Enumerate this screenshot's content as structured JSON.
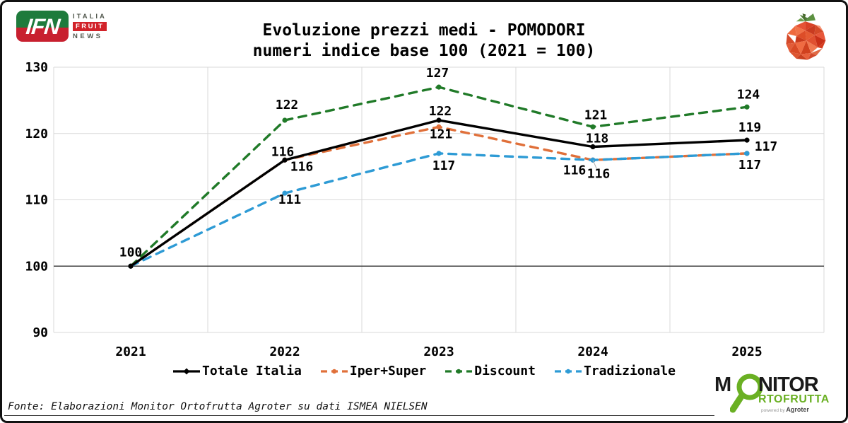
{
  "header": {
    "logo": {
      "ifn": "IFN",
      "italia": "ITALIA",
      "fruit": "FRUIT",
      "news": "NEWS"
    },
    "title_line1": "Evoluzione prezzi medi - POMODORI",
    "title_line2": "numeri indice base 100 (2021 = 100)"
  },
  "chart_data": {
    "type": "line",
    "title": "Evoluzione prezzi medi - POMODORI",
    "subtitle": "numeri indice base 100 (2021 = 100)",
    "categories": [
      "2021",
      "2022",
      "2023",
      "2024",
      "2025"
    ],
    "series": [
      {
        "name": "Totale Italia",
        "values": [
          100,
          116,
          122,
          118,
          119
        ],
        "color": "#000000",
        "dash": "solid"
      },
      {
        "name": "Iper+Super",
        "values": [
          100,
          116,
          121,
          116,
          117
        ],
        "color": "#E0703A",
        "dash": "dashed"
      },
      {
        "name": "Discount",
        "values": [
          100,
          122,
          127,
          121,
          124
        ],
        "color": "#207A28",
        "dash": "dashed"
      },
      {
        "name": "Tradizionale",
        "values": [
          100,
          111,
          117,
          116,
          117
        ],
        "color": "#2E9BD5",
        "dash": "dashed"
      }
    ],
    "ylim": [
      90,
      130
    ],
    "yticks": [
      90,
      100,
      110,
      120,
      130
    ],
    "baseline_value": 100,
    "grid": true,
    "legend_position": "bottom",
    "data_labels": true,
    "colors": {
      "grid": "#D9D9D9",
      "baseline": "#404040",
      "label_text": "#000000"
    }
  },
  "footer": {
    "source": "Fonte: Elaborazioni Monitor Ortofrutta Agroter su dati ISMEA NIELSEN"
  },
  "monitor_logo": {
    "m": "M",
    "nitor": "NITOR",
    "rtofrutta": "RTOFRUTTA",
    "powered_by": "powered by",
    "brand": "Agroter"
  }
}
